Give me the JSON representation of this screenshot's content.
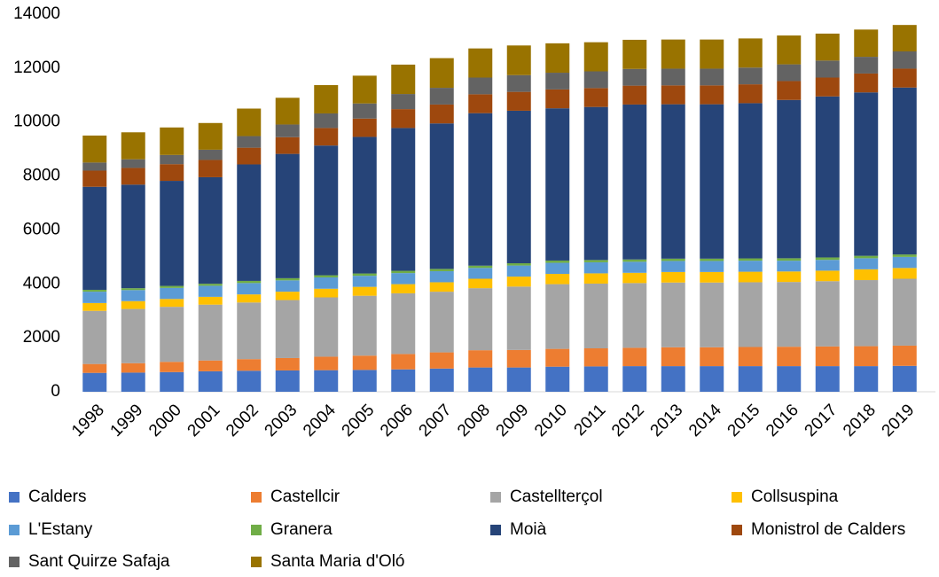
{
  "chart_data": {
    "type": "stacked_bar",
    "categories": [
      "1998",
      "1999",
      "2000",
      "2001",
      "2002",
      "2003",
      "2004",
      "2005",
      "2006",
      "2007",
      "2008",
      "2009",
      "2010",
      "2011",
      "2012",
      "2013",
      "2014",
      "2015",
      "2016",
      "2017",
      "2018",
      "2019"
    ],
    "series": [
      {
        "name": "Calders",
        "color": "#4472c4",
        "values": [
          700,
          710,
          730,
          760,
          780,
          790,
          800,
          810,
          830,
          860,
          900,
          900,
          930,
          940,
          950,
          950,
          950,
          950,
          950,
          950,
          950,
          960
        ]
      },
      {
        "name": "Castellcir",
        "color": "#ed7d31",
        "values": [
          330,
          350,
          380,
          400,
          430,
          460,
          500,
          530,
          570,
          600,
          640,
          650,
          660,
          670,
          680,
          700,
          700,
          710,
          720,
          730,
          740,
          750
        ]
      },
      {
        "name": "Castellterçol",
        "color": "#a5a5a5",
        "values": [
          1970,
          2010,
          2040,
          2070,
          2100,
          2150,
          2200,
          2220,
          2250,
          2250,
          2300,
          2350,
          2400,
          2400,
          2400,
          2400,
          2400,
          2400,
          2400,
          2420,
          2450,
          2480
        ]
      },
      {
        "name": "Collsuspina",
        "color": "#ffc000",
        "values": [
          290,
          290,
          290,
          290,
          300,
          310,
          320,
          330,
          340,
          350,
          350,
          370,
          380,
          380,
          380,
          390,
          390,
          390,
          390,
          390,
          400,
          400
        ]
      },
      {
        "name": "L'Estany",
        "color": "#5b9bd5",
        "values": [
          420,
          410,
          410,
          410,
          420,
          420,
          420,
          410,
          410,
          410,
          400,
          410,
          410,
          410,
          410,
          410,
          410,
          410,
          400,
          400,
          410,
          410
        ]
      },
      {
        "name": "Granera",
        "color": "#70ad47",
        "values": [
          70,
          70,
          75,
          75,
          80,
          80,
          80,
          85,
          85,
          85,
          85,
          85,
          85,
          85,
          85,
          85,
          85,
          85,
          90,
          90,
          90,
          90
        ]
      },
      {
        "name": "Moià",
        "color": "#264478",
        "values": [
          3820,
          3840,
          3895,
          3950,
          4320,
          4610,
          4810,
          5065,
          5295,
          5395,
          5655,
          5655,
          5645,
          5675,
          5745,
          5725,
          5725,
          5755,
          5870,
          5970,
          6060,
          6190
        ]
      },
      {
        "name": "Monistrol de Calders",
        "color": "#9e480e",
        "values": [
          600,
          620,
          620,
          640,
          620,
          620,
          650,
          680,
          700,
          700,
          700,
          700,
          700,
          700,
          700,
          700,
          700,
          700,
          700,
          700,
          700,
          700
        ]
      },
      {
        "name": "Sant Quirze Safaja",
        "color": "#636363",
        "values": [
          300,
          320,
          340,
          380,
          430,
          470,
          540,
          560,
          560,
          620,
          620,
          620,
          620,
          620,
          620,
          620,
          620,
          620,
          620,
          630,
          620,
          640
        ]
      },
      {
        "name": "Santa Maria d'Oló",
        "color": "#997300",
        "values": [
          1000,
          1000,
          1020,
          990,
          1020,
          990,
          1050,
          1030,
          1090,
          1100,
          1080,
          1100,
          1090,
          1080,
          1080,
          1080,
          1080,
          1080,
          1070,
          1000,
          1010,
          980
        ]
      }
    ],
    "ylim": [
      0,
      14000
    ],
    "yticks": [
      0,
      2000,
      4000,
      6000,
      8000,
      10000,
      12000,
      14000
    ],
    "legend": "bottom"
  }
}
